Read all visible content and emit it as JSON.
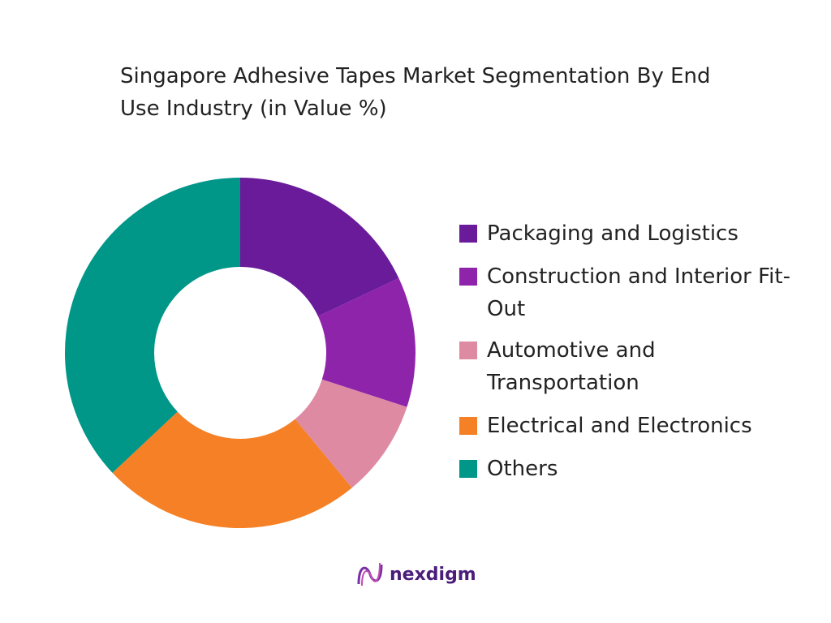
{
  "chart_data": {
    "type": "donut",
    "title": "Singapore Adhesive Tapes Market Segmentation By End Use Industry (in Value %)",
    "categories": [
      "Packaging and Logistics",
      "Construction and Interior Fit-Out",
      "Automotive and Transportation",
      "Electrical and Electronics",
      "Others"
    ],
    "values": [
      18,
      12,
      9,
      24,
      37
    ],
    "colors": [
      "#6a1b9a",
      "#8e24aa",
      "#de8aa3",
      "#f58025",
      "#009688"
    ],
    "legend": "right"
  },
  "brand": {
    "name": "nexdigm"
  }
}
